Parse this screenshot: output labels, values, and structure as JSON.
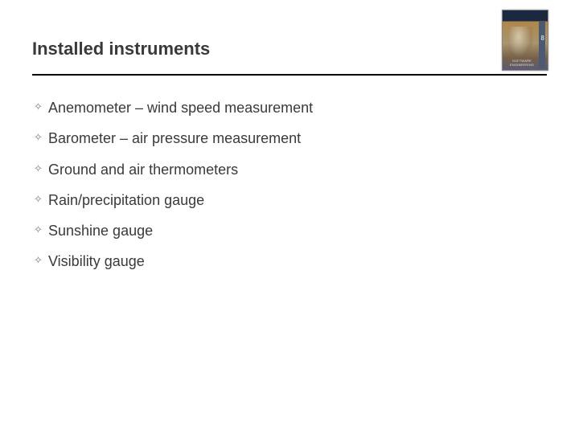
{
  "slide": {
    "title": "Installed instruments",
    "title_color": "#3a3a3a",
    "divider_color": "#000000",
    "background_color": "#ffffff",
    "bullet_glyph": "✧",
    "bullet_color": "#7a7a7a",
    "body_color": "#3a3a3a",
    "title_fontsize": 22,
    "body_fontsize": 18,
    "items": [
      "Anemometer – wind speed measurement",
      "Barometer – air pressure measurement",
      "Ground and air thermometers",
      "Rain/precipitation gauge",
      "Sunshine gauge",
      "Visibility gauge"
    ]
  },
  "thumbnail": {
    "top_text": "",
    "bottom_text": "SOFTWARE ENGINEERING",
    "edition": "8",
    "width": 58,
    "height": 76
  }
}
